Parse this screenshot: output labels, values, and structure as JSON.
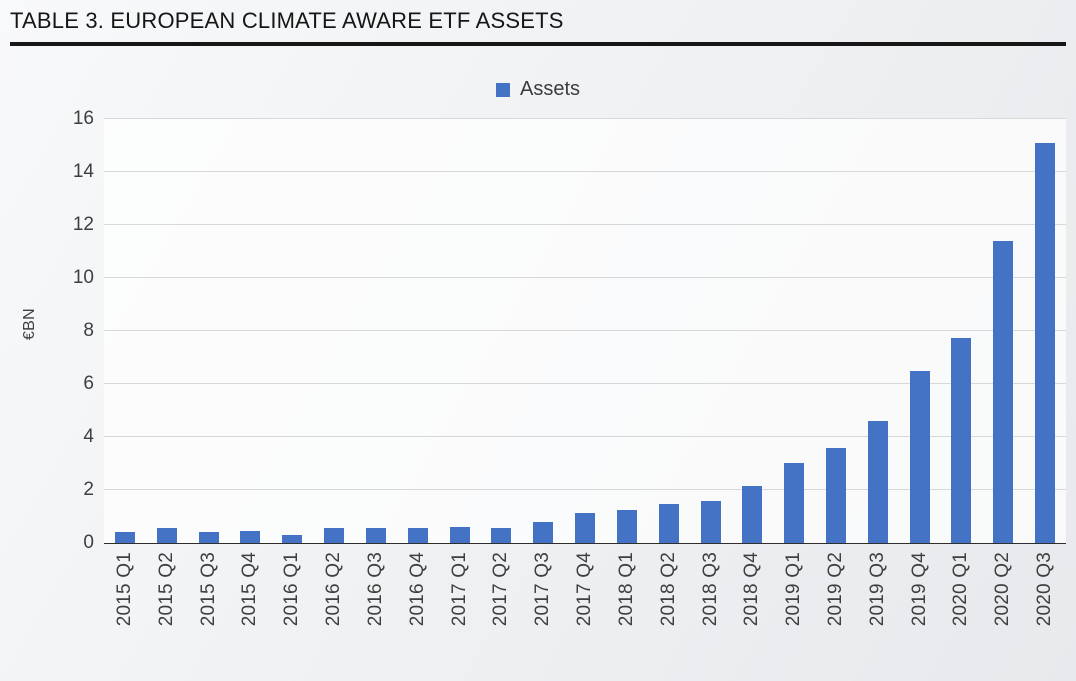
{
  "header": {
    "title": "TABLE 3. EUROPEAN CLIMATE AWARE ETF ASSETS"
  },
  "legend": {
    "label": "Assets",
    "swatch_color": "#4472C4"
  },
  "y_axis": {
    "label": "€BN",
    "ticks": [
      0,
      2,
      4,
      6,
      8,
      10,
      12,
      14,
      16
    ],
    "max": 16
  },
  "style": {
    "bar_color": "#4472C4",
    "gridline_color": "#d8d8d8",
    "axis_color": "#2e2e2e"
  },
  "chart_data": {
    "type": "bar",
    "title": "TABLE 3. EUROPEAN CLIMATE AWARE ETF ASSETS",
    "xlabel": "",
    "ylabel": "€BN",
    "ylim": [
      0,
      16
    ],
    "grid": true,
    "legend_position": "top-center",
    "series_name": "Assets",
    "categories": [
      "2015 Q1",
      "2015 Q2",
      "2015 Q3",
      "2015 Q4",
      "2016 Q1",
      "2016 Q2",
      "2016 Q3",
      "2016 Q4",
      "2017 Q1",
      "2017 Q2",
      "2017 Q3",
      "2017 Q4",
      "2018 Q1",
      "2018 Q2",
      "2018 Q3",
      "2018 Q4",
      "2019 Q1",
      "2019 Q2",
      "2019 Q3",
      "2019 Q4",
      "2020 Q1",
      "2020 Q2",
      "2020 Q3"
    ],
    "values": [
      0.42,
      0.56,
      0.42,
      0.45,
      0.3,
      0.55,
      0.57,
      0.57,
      0.6,
      0.55,
      0.78,
      1.12,
      1.23,
      1.47,
      1.6,
      2.16,
      3.03,
      3.6,
      4.6,
      6.5,
      7.72,
      11.4,
      15.1
    ]
  }
}
